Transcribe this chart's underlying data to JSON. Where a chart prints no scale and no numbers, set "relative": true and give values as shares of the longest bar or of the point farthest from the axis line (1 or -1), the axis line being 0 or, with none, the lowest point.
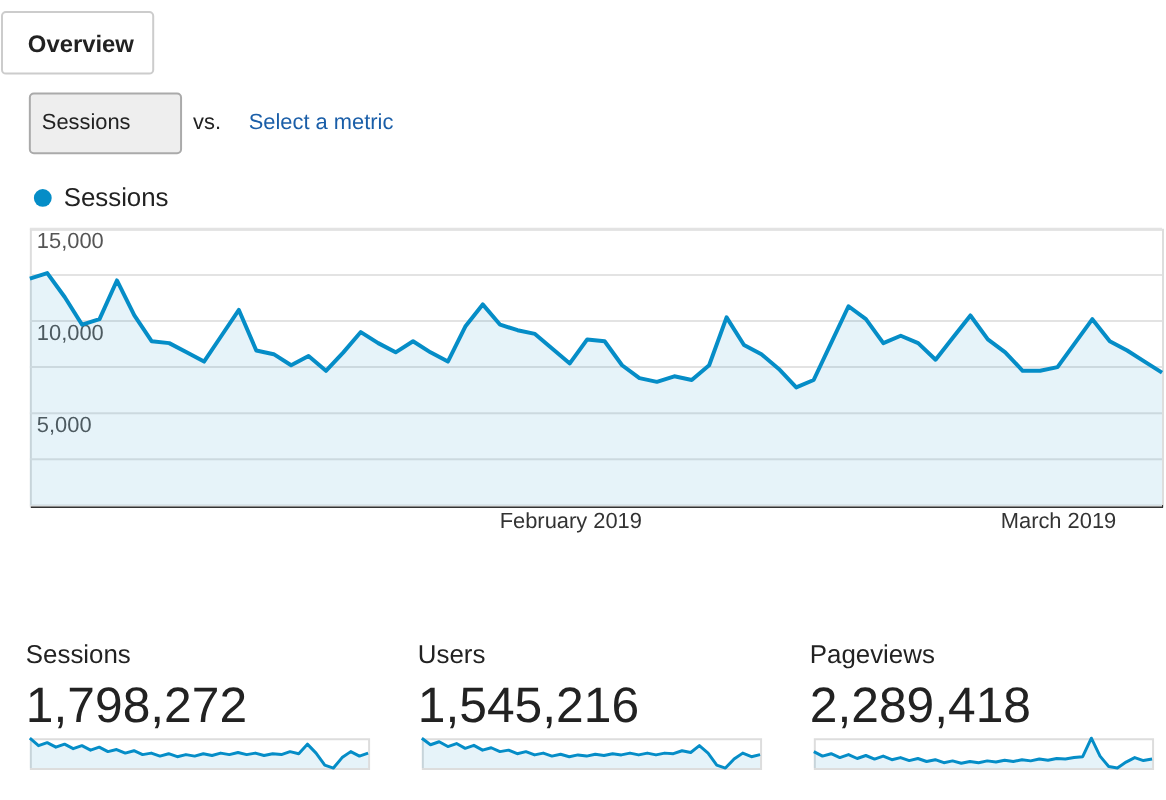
{
  "chart_data": [
    {
      "type": "area",
      "x": [
        "2019-01-01",
        "2019-01-02",
        "2019-01-03",
        "2019-01-04",
        "2019-01-05",
        "2019-01-06",
        "2019-01-07",
        "2019-01-08",
        "2019-01-09",
        "2019-01-10",
        "2019-01-11",
        "2019-01-12",
        "2019-01-13",
        "2019-01-14",
        "2019-01-15",
        "2019-01-16",
        "2019-01-17",
        "2019-01-18",
        "2019-01-19",
        "2019-01-20",
        "2019-01-21",
        "2019-01-22",
        "2019-01-23",
        "2019-01-24",
        "2019-01-25",
        "2019-01-26",
        "2019-01-27",
        "2019-01-28",
        "2019-01-29",
        "2019-01-30",
        "2019-01-31",
        "2019-02-01",
        "2019-02-02",
        "2019-02-03",
        "2019-02-04",
        "2019-02-05",
        "2019-02-06",
        "2019-02-07",
        "2019-02-08",
        "2019-02-09",
        "2019-02-10",
        "2019-02-11",
        "2019-02-12",
        "2019-02-13",
        "2019-02-14",
        "2019-02-15",
        "2019-02-16",
        "2019-02-17",
        "2019-02-18",
        "2019-02-19",
        "2019-02-20",
        "2019-02-21",
        "2019-02-22",
        "2019-02-23",
        "2019-02-24",
        "2019-02-25",
        "2019-02-26",
        "2019-02-27",
        "2019-02-28",
        "2019-03-01",
        "2019-03-02",
        "2019-03-03",
        "2019-03-04",
        "2019-03-05",
        "2019-03-06",
        "2019-03-07"
      ],
      "series": [
        {
          "name": "Sessions",
          "color": "#058dc7",
          "values": [
            12300,
            12600,
            11300,
            9800,
            10100,
            12200,
            10300,
            8900,
            8800,
            8300,
            7800,
            9200,
            10600,
            8400,
            8200,
            7600,
            8100,
            7300,
            8300,
            9400,
            8800,
            8300,
            8900,
            8300,
            7800,
            9700,
            10900,
            9800,
            9500,
            9300,
            8500,
            7700,
            9000,
            8900,
            7600,
            6900,
            6700,
            7000,
            6800,
            7600,
            10200,
            8700,
            8200,
            7400,
            6400,
            6800,
            8800,
            10800,
            10100,
            8800,
            9200,
            8800,
            7900,
            9100,
            10300,
            9000,
            8300,
            7300,
            7300,
            7500,
            8800,
            10100,
            8900,
            8400,
            7800,
            7200
          ]
        }
      ],
      "xlim": [
        "2019-01-01",
        "2019-03-07"
      ],
      "xticks": [
        {
          "value": "2019-02-01",
          "label": "February 2019"
        },
        {
          "value": "2019-03-01",
          "label": "March 2019"
        }
      ],
      "ylim": [
        0,
        15000
      ],
      "yticks": [
        {
          "value": 0,
          "label": null
        },
        {
          "value": 2500,
          "label": null
        },
        {
          "value": 5000,
          "label": "5,000"
        },
        {
          "value": 7500,
          "label": null
        },
        {
          "value": 10000,
          "label": "10,000"
        },
        {
          "value": 12500,
          "label": null
        },
        {
          "value": 15000,
          "label": "15,000"
        }
      ],
      "grid": "y",
      "legend": "top left",
      "annotations": [
        "Overview",
        "Sessions",
        "vs.",
        "Select a metric"
      ]
    },
    {
      "type": "line",
      "relative": true,
      "title": "Sessions",
      "annotations": [
        "1,798,272"
      ],
      "categories": [
        null,
        null,
        null,
        null,
        null,
        null,
        null,
        null,
        null,
        null,
        null,
        null,
        null,
        null,
        null,
        null,
        null,
        null,
        null,
        null,
        null,
        null,
        null,
        null,
        null,
        null,
        null,
        null,
        null,
        null,
        null,
        null,
        null,
        null,
        null,
        null,
        null,
        null,
        null,
        null
      ],
      "series": [
        {
          "color": "#058dc7",
          "values": [
            1.0,
            0.75,
            0.85,
            0.7,
            0.8,
            0.65,
            0.75,
            0.6,
            0.7,
            0.55,
            0.62,
            0.5,
            0.58,
            0.45,
            0.5,
            0.4,
            0.48,
            0.38,
            0.45,
            0.4,
            0.48,
            0.42,
            0.5,
            0.45,
            0.52,
            0.45,
            0.5,
            0.42,
            0.48,
            0.45,
            0.55,
            0.48,
            0.8,
            0.5,
            0.1,
            0.0,
            0.35,
            0.55,
            0.4,
            0.5
          ]
        }
      ]
    },
    {
      "type": "line",
      "relative": true,
      "title": "Users",
      "annotations": [
        "1,545,216"
      ],
      "categories": [
        null,
        null,
        null,
        null,
        null,
        null,
        null,
        null,
        null,
        null,
        null,
        null,
        null,
        null,
        null,
        null,
        null,
        null,
        null,
        null,
        null,
        null,
        null,
        null,
        null,
        null,
        null,
        null,
        null,
        null,
        null,
        null,
        null,
        null,
        null,
        null,
        null,
        null,
        null,
        null
      ],
      "series": [
        {
          "color": "#058dc7",
          "values": [
            1.0,
            0.78,
            0.88,
            0.72,
            0.82,
            0.66,
            0.76,
            0.6,
            0.68,
            0.55,
            0.6,
            0.48,
            0.55,
            0.44,
            0.5,
            0.4,
            0.46,
            0.38,
            0.44,
            0.4,
            0.46,
            0.42,
            0.48,
            0.44,
            0.5,
            0.44,
            0.5,
            0.44,
            0.5,
            0.48,
            0.58,
            0.52,
            0.75,
            0.5,
            0.1,
            0.0,
            0.3,
            0.5,
            0.38,
            0.45
          ]
        }
      ]
    },
    {
      "type": "line",
      "relative": true,
      "title": "Pageviews",
      "annotations": [
        "2,289,418"
      ],
      "categories": [
        null,
        null,
        null,
        null,
        null,
        null,
        null,
        null,
        null,
        null,
        null,
        null,
        null,
        null,
        null,
        null,
        null,
        null,
        null,
        null,
        null,
        null,
        null,
        null,
        null,
        null,
        null,
        null,
        null,
        null,
        null,
        null,
        null,
        null,
        null,
        null,
        null,
        null,
        null,
        null
      ],
      "series": [
        {
          "color": "#058dc7",
          "values": [
            0.55,
            0.4,
            0.48,
            0.35,
            0.45,
            0.32,
            0.42,
            0.3,
            0.4,
            0.28,
            0.35,
            0.25,
            0.32,
            0.22,
            0.28,
            0.18,
            0.24,
            0.16,
            0.22,
            0.18,
            0.24,
            0.2,
            0.26,
            0.22,
            0.28,
            0.24,
            0.3,
            0.26,
            0.32,
            0.3,
            0.35,
            0.38,
            1.0,
            0.4,
            0.05,
            0.0,
            0.2,
            0.35,
            0.25,
            0.3
          ]
        }
      ]
    }
  ]
}
